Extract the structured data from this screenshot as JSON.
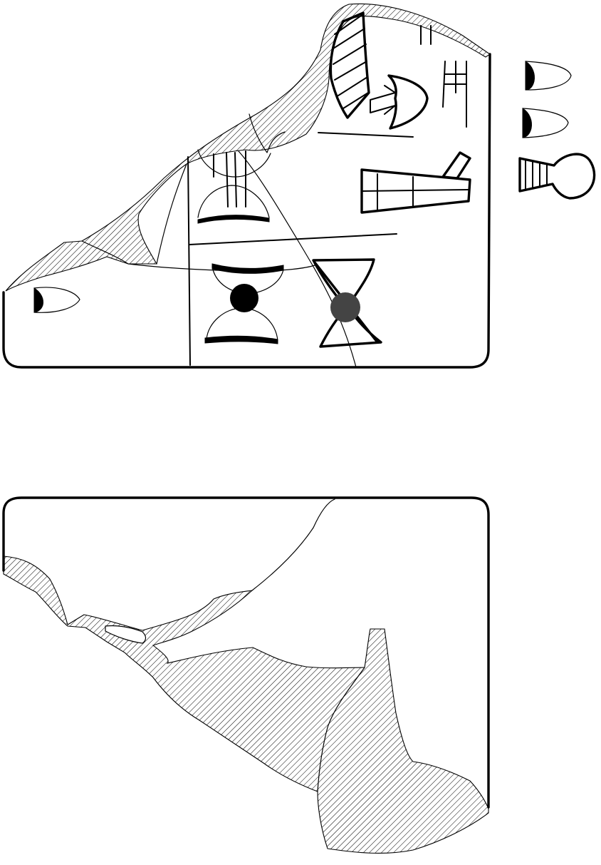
{
  "figure": {
    "kind": "cuneiform tablet line drawing",
    "colors": {
      "ink": "#000000",
      "background": "#ffffff",
      "filled_circle_1": "#000000",
      "filled_circle_2": "#444444"
    }
  }
}
